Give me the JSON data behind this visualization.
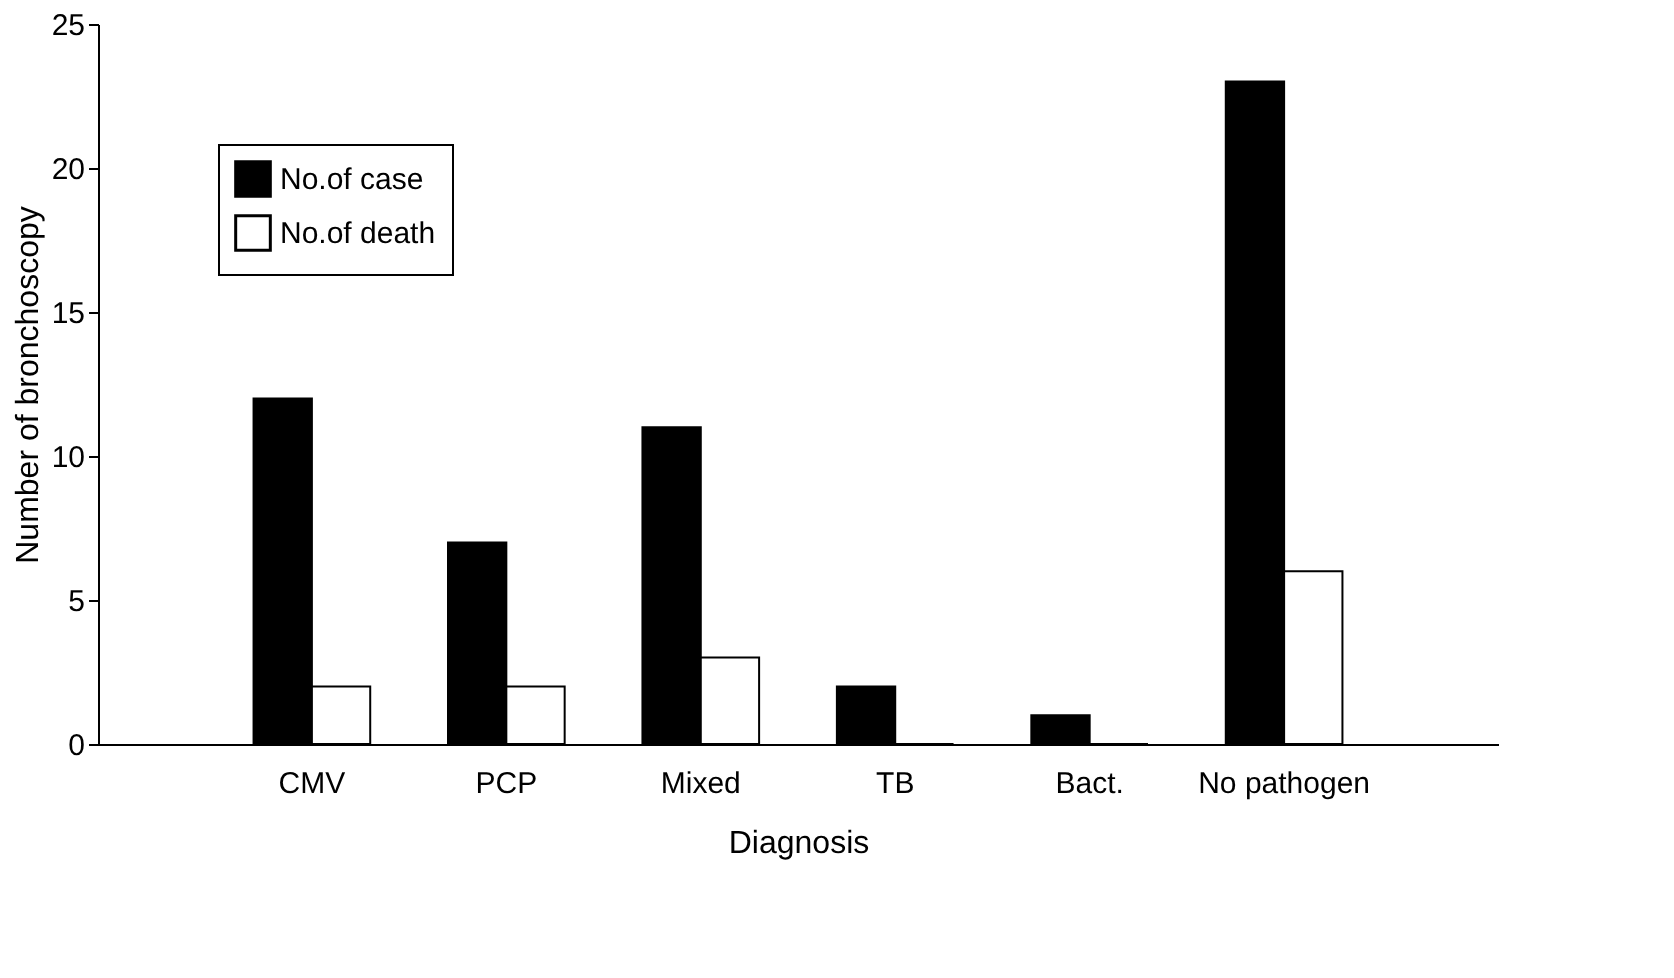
{
  "chart_data": {
    "type": "bar",
    "xlabel": "Diagnosis",
    "ylabel": "Number of bronchoscopy",
    "categories": [
      "CMV",
      "PCP",
      "Mixed",
      "TB",
      "Bact.",
      "No pathogen"
    ],
    "series": [
      {
        "name": "No.of case",
        "color": "#000000",
        "values": [
          12,
          7,
          11,
          2,
          1,
          23
        ]
      },
      {
        "name": "No.of death",
        "color": "#ffffff",
        "values": [
          2,
          2,
          3,
          0,
          0,
          6
        ]
      }
    ],
    "ylim": [
      0,
      25
    ],
    "yticks": [
      0,
      5,
      10,
      15,
      20,
      25
    ],
    "grid": false,
    "legend": "top left"
  }
}
